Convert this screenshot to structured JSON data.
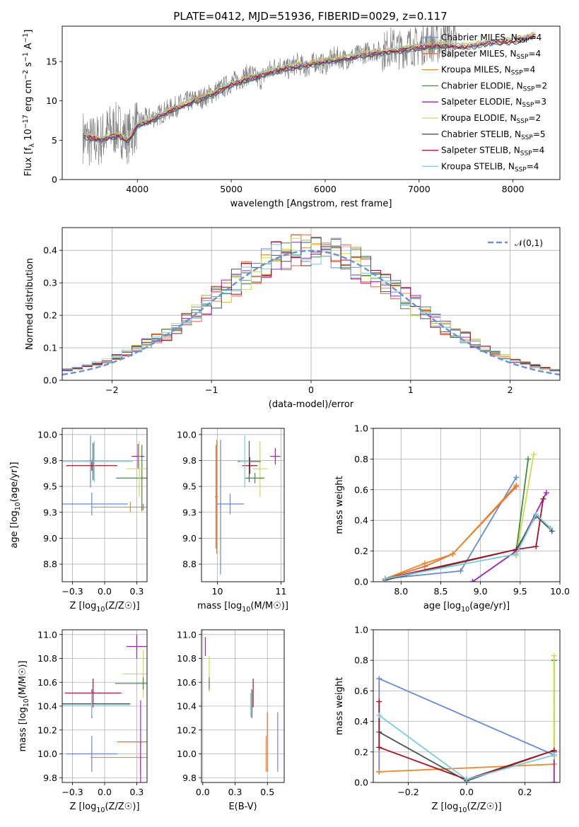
{
  "title": "PLATE=0412, MJD=51936, FIBERID=0029, z=0.117",
  "models": [
    {
      "name": "Chabrier MILES, N$_{SSP}$=4",
      "base": "Chabrier MILES, N",
      "sub": "SSP",
      "tail": "=4",
      "color": "#6688dd"
    },
    {
      "name": "Salpeter MILES, N$_{SSP}$=4",
      "base": "Salpeter MILES, N",
      "sub": "SSP",
      "tail": "=4",
      "color": "#ee6633"
    },
    {
      "name": "Kroupa MILES, N$_{SSP}$=4",
      "base": "Kroupa MILES, N",
      "sub": "SSP",
      "tail": "=4",
      "color": "#ee8822"
    },
    {
      "name": "Chabrier ELODIE, N$_{SSP}$=2",
      "base": "Chabrier ELODIE, N",
      "sub": "SSP",
      "tail": "=2",
      "color": "#448844"
    },
    {
      "name": "Salpeter ELODIE, N$_{SSP}$=3",
      "base": "Salpeter ELODIE, N",
      "sub": "SSP",
      "tail": "=3",
      "color": "#9922bb"
    },
    {
      "name": "Kroupa ELODIE, N$_{SSP}$=2",
      "base": "Kroupa ELODIE, N",
      "sub": "SSP",
      "tail": "=2",
      "color": "#ccdd44"
    },
    {
      "name": "Chabrier STELIB, N$_{SSP}$=5",
      "base": "Chabrier STELIB, N",
      "sub": "SSP",
      "tail": "=5",
      "color": "#445555"
    },
    {
      "name": "Salpeter STELIB, N$_{SSP}$=4",
      "base": "Salpeter STELIB, N",
      "sub": "SSP",
      "tail": "=4",
      "color": "#aa1122"
    },
    {
      "name": "Kroupa STELIB, N$_{SSP}$=4",
      "base": "Kroupa STELIB, N",
      "sub": "SSP",
      "tail": "=4",
      "color": "#77ccdd"
    }
  ],
  "chart_data": [
    {
      "type": "line",
      "id": "spectrum",
      "xlabel": "wavelength [Angstrom, rest frame]",
      "ylabel": "Flux [f_λ 10^-17 erg cm^-2 s^-1 A^-1]",
      "xlim": [
        3200,
        8500
      ],
      "ylim": [
        0,
        19.5
      ],
      "xticks": [
        4000,
        5000,
        6000,
        7000,
        8000
      ],
      "yticks": [
        0,
        5,
        10,
        15
      ],
      "data_color": "#808080",
      "data_x": [
        3420,
        3500,
        3600,
        3700,
        3800,
        3900,
        4000,
        4100,
        4200,
        4300,
        4400,
        4500,
        4600,
        4700,
        4800,
        4900,
        5000,
        5100,
        5200,
        5300,
        5400,
        5500,
        5600,
        5700,
        5800,
        5900,
        6000,
        6100,
        6200,
        6300,
        6400,
        6500,
        6600,
        6700,
        6800,
        6900,
        7000,
        7100,
        7200,
        7300,
        7400
      ],
      "data_y": [
        5.5,
        4.8,
        5.0,
        6.2,
        6.5,
        5.3,
        7.2,
        7.8,
        8.0,
        8.7,
        9.2,
        9.8,
        10.1,
        10.4,
        11.0,
        11.6,
        12.3,
        12.8,
        13.5,
        12.6,
        13.8,
        14.6,
        14.0,
        14.8,
        14.2,
        15.0,
        14.6,
        15.6,
        15.3,
        15.6,
        16.0,
        16.4,
        16.2,
        16.9,
        16.5,
        17.1,
        16.8,
        17.6,
        17.2,
        18.0,
        17.4
      ],
      "model_x": [
        3420,
        3600,
        3800,
        3900,
        4000,
        4200,
        4400,
        4600,
        4800,
        5000,
        5200,
        5400,
        5600,
        5800,
        6000,
        6200,
        6400,
        6600,
        6800,
        7000,
        7200,
        7500,
        7800,
        8000,
        8250
      ],
      "model_y": [
        5.6,
        5.1,
        5.7,
        4.9,
        6.9,
        7.9,
        9.0,
        10.0,
        10.9,
        12.1,
        12.9,
        13.6,
        14.2,
        14.6,
        15.0,
        15.4,
        15.8,
        16.2,
        16.5,
        16.8,
        17.1,
        16.9,
        17.5,
        17.6,
        18.4
      ]
    },
    {
      "type": "histogram",
      "id": "residuals",
      "xlabel": "(data-model)/error",
      "ylabel": "Normed distribution",
      "xlim": [
        -2.5,
        2.5
      ],
      "ylim": [
        0,
        0.47
      ],
      "xticks": [
        -2,
        -1,
        0,
        1,
        2
      ],
      "yticks": [
        0.0,
        0.1,
        0.2,
        0.3,
        0.4
      ],
      "bin_width": 0.1,
      "reference": {
        "label": "𝒩(0,1)",
        "color": "#6a8fd8",
        "mean": 0,
        "sigma": 1
      }
    },
    {
      "type": "errorbar",
      "id": "age-vs-Z",
      "xlabel": "Z [log10(Z/Z☉)]",
      "ylabel": "age [log10(age/yr)]",
      "xlim": [
        -0.33,
        0.33
      ],
      "ylim": [
        8.58,
        10.06
      ],
      "xticks": [
        -0.25,
        0.0,
        0.25
      ],
      "yticks": [
        8.75,
        9.0,
        9.25,
        9.5,
        9.75,
        10.0
      ],
      "points": [
        {
          "model": 0,
          "x": -0.1,
          "xerr": 0.28,
          "y": 9.33,
          "yerr": 0.11
        },
        {
          "model": 0,
          "x": -0.11,
          "xerr": 0.04,
          "y": 9.74,
          "yerr": 0.25
        },
        {
          "model": 1,
          "x": 0.3,
          "xerr": 0.01,
          "y": 9.3,
          "yerr": 0.03
        },
        {
          "model": 2,
          "x": 0.2,
          "xerr": 0.3,
          "y": 9.3,
          "yerr": 0.05
        },
        {
          "model": 3,
          "x": 0.29,
          "xerr": 0.2,
          "y": 9.58,
          "yerr": 0.32
        },
        {
          "model": 4,
          "x": 0.26,
          "xerr": 0.05,
          "y": 9.79,
          "yerr": 0.12
        },
        {
          "model": 5,
          "x": 0.27,
          "xerr": 0.1,
          "y": 9.67,
          "yerr": 0.27
        },
        {
          "model": 6,
          "x": -0.09,
          "xerr": 0.28,
          "y": 9.74,
          "yerr": 0.18
        },
        {
          "model": 7,
          "x": -0.1,
          "xerr": 0.2,
          "y": 9.7,
          "yerr": 0.05
        },
        {
          "model": 8,
          "x": -0.08,
          "xerr": 0.3,
          "y": 9.74,
          "yerr": 0.2
        }
      ]
    },
    {
      "type": "errorbar",
      "id": "age-vs-mass",
      "xlabel": "mass [log10(M/M☉)]",
      "ylabel": "",
      "xlim": [
        9.75,
        11.05
      ],
      "ylim": [
        8.58,
        10.06
      ],
      "xticks": [
        10,
        11
      ],
      "yticks": [
        8.75,
        9.0,
        9.25,
        9.5,
        9.75,
        10.0
      ],
      "points": [
        {
          "model": 0,
          "x": 10.2,
          "xerr": 0.22,
          "y": 9.33,
          "yerr": 0.1
        },
        {
          "model": 1,
          "x": 9.98,
          "xerr": 0.02,
          "y": 9.4,
          "yerr": 0.5
        },
        {
          "model": 2,
          "x": 9.99,
          "xerr": 0.02,
          "y": 9.4,
          "yerr": 0.55
        },
        {
          "model": 4,
          "x": 10.91,
          "xerr": 0.08,
          "y": 9.79,
          "yerr": 0.08
        },
        {
          "model": 5,
          "x": 10.67,
          "xerr": 0.12,
          "y": 9.67,
          "yerr": 0.27
        },
        {
          "model": 6,
          "x": 10.5,
          "xerr": 0.18,
          "y": 9.74,
          "yerr": 0.2
        },
        {
          "model": 7,
          "x": 10.51,
          "xerr": 0.12,
          "y": 9.7,
          "yerr": 0.08
        },
        {
          "model": 8,
          "x": 10.43,
          "xerr": 0.08,
          "y": 9.74,
          "yerr": 0.25
        },
        {
          "model": 3,
          "x": 10.59,
          "xerr": 0.15,
          "y": 9.58,
          "yerr": 0.05
        },
        {
          "model": 0,
          "x": 10.05,
          "xerr": 0.01,
          "y": 9.3,
          "yerr": 0.65
        }
      ]
    },
    {
      "type": "line",
      "id": "weight-vs-age",
      "xlabel": "age [log10(age/yr)]",
      "ylabel": "mass weight",
      "xlim": [
        7.65,
        10.0
      ],
      "ylim": [
        0,
        1.0
      ],
      "xticks": [
        8.0,
        8.5,
        9.0,
        9.5,
        10.0
      ],
      "yticks": [
        0.0,
        0.2,
        0.4,
        0.6,
        0.8,
        1.0
      ],
      "series": [
        {
          "model": 0,
          "x": [
            7.8,
            8.75,
            9.45
          ],
          "y": [
            0.02,
            0.07,
            0.68
          ]
        },
        {
          "model": 1,
          "x": [
            7.8,
            8.3,
            8.65,
            9.45
          ],
          "y": [
            0.02,
            0.1,
            0.18,
            0.62
          ]
        },
        {
          "model": 2,
          "x": [
            7.8,
            8.3,
            8.65,
            9.45
          ],
          "y": [
            0.02,
            0.12,
            0.18,
            0.63
          ]
        },
        {
          "model": 3,
          "x": [
            9.45,
            9.6
          ],
          "y": [
            0.2,
            0.8
          ]
        },
        {
          "model": 4,
          "x": [
            8.9,
            9.45,
            9.83
          ],
          "y": [
            0.0,
            0.2,
            0.58
          ]
        },
        {
          "model": 5,
          "x": [
            9.45,
            9.67
          ],
          "y": [
            0.17,
            0.83
          ]
        },
        {
          "model": 6,
          "x": [
            7.8,
            9.45,
            9.7,
            9.9
          ],
          "y": [
            0.01,
            0.21,
            0.43,
            0.33
          ]
        },
        {
          "model": 7,
          "x": [
            7.8,
            9.45,
            9.7,
            9.79
          ],
          "y": [
            0.02,
            0.21,
            0.23,
            0.54
          ]
        },
        {
          "model": 8,
          "x": [
            7.8,
            9.45,
            9.7,
            9.88
          ],
          "y": [
            0.02,
            0.18,
            0.44,
            0.35
          ]
        }
      ]
    },
    {
      "type": "errorbar",
      "id": "mass-vs-Z",
      "xlabel": "Z [log10(Z/Z☉)]",
      "ylabel": "mass [log10(M/M☉)]",
      "xlim": [
        -0.33,
        0.33
      ],
      "ylim": [
        9.76,
        11.04
      ],
      "xticks": [
        -0.25,
        0.0,
        0.25
      ],
      "yticks": [
        9.8,
        10.0,
        10.2,
        10.4,
        10.6,
        10.8,
        11.0
      ],
      "points": [
        {
          "model": 0,
          "x": -0.1,
          "xerr": 0.2,
          "y": 10.0,
          "yerr": 0.0
        },
        {
          "model": 0,
          "x": -0.1,
          "xerr": 0.0,
          "y": 10.0,
          "yerr": 0.15
        },
        {
          "model": 1,
          "x": 0.28,
          "xerr": 0.02,
          "y": 9.97,
          "yerr": 0.15
        },
        {
          "model": 2,
          "x": 0.17,
          "xerr": 0.28,
          "y": 9.97,
          "yerr": 0.0
        },
        {
          "model": 4,
          "x": 0.25,
          "xerr": 0.08,
          "y": 10.9,
          "yerr": 0.1
        },
        {
          "model": 5,
          "x": 0.3,
          "xerr": 0.16,
          "y": 10.67,
          "yerr": 0.2
        },
        {
          "model": 3,
          "x": 0.3,
          "xerr": 0.22,
          "y": 10.59,
          "yerr": 0.05
        },
        {
          "model": 6,
          "x": -0.1,
          "xerr": 0.3,
          "y": 10.42,
          "yerr": 0.12
        },
        {
          "model": 7,
          "x": -0.09,
          "xerr": 0.22,
          "y": 10.51,
          "yerr": 0.12
        },
        {
          "model": 8,
          "x": -0.1,
          "xerr": 0.3,
          "y": 10.41,
          "yerr": 0.1
        },
        {
          "model": 1,
          "x": 0.22,
          "xerr": 0.12,
          "y": 10.1,
          "yerr": 0.0
        },
        {
          "model": 4,
          "x": 0.28,
          "xerr": 0.0,
          "y": 10.1,
          "yerr": 0.35
        }
      ]
    },
    {
      "type": "errorbar",
      "id": "mass-vs-ebv",
      "xlabel": "E(B-V)",
      "ylabel": "",
      "xlim": [
        -0.01,
        0.63
      ],
      "ylim": [
        9.76,
        11.04
      ],
      "xticks": [
        0.0,
        0.25,
        0.5
      ],
      "yticks": [
        9.8,
        10.0,
        10.2,
        10.4,
        10.6,
        10.8,
        11.0
      ],
      "points": [
        {
          "model": 4,
          "x": 0.02,
          "xerr": 0.0,
          "y": 10.9,
          "yerr": 0.08
        },
        {
          "model": 5,
          "x": 0.05,
          "xerr": 0.0,
          "y": 10.67,
          "yerr": 0.15
        },
        {
          "model": 3,
          "x": 0.05,
          "xerr": 0.0,
          "y": 10.59,
          "yerr": 0.05
        },
        {
          "model": 7,
          "x": 0.39,
          "xerr": 0.0,
          "y": 10.51,
          "yerr": 0.12
        },
        {
          "model": 6,
          "x": 0.38,
          "xerr": 0.0,
          "y": 10.42,
          "yerr": 0.12
        },
        {
          "model": 8,
          "x": 0.37,
          "xerr": 0.0,
          "y": 10.41,
          "yerr": 0.1
        },
        {
          "model": 1,
          "x": 0.5,
          "xerr": 0.0,
          "y": 10.1,
          "yerr": 0.25
        },
        {
          "model": 2,
          "x": 0.49,
          "xerr": 0.0,
          "y": 10.0,
          "yerr": 0.15
        },
        {
          "model": 0,
          "x": 0.58,
          "xerr": 0.0,
          "y": 10.1,
          "yerr": 0.25
        }
      ]
    },
    {
      "type": "line",
      "id": "weight-vs-Z",
      "xlabel": "Z [log10(Z/Z☉)]",
      "ylabel": "mass weight",
      "xlim": [
        -0.32,
        0.32
      ],
      "ylim": [
        0,
        1.0
      ],
      "xticks": [
        -0.2,
        0.0,
        0.2
      ],
      "yticks": [
        0.0,
        0.2,
        0.4,
        0.6,
        0.8,
        1.0
      ],
      "series": [
        {
          "model": 0,
          "x": [
            -0.3,
            -0.3,
            0.3
          ],
          "y": [
            0.07,
            0.68,
            0.18
          ]
        },
        {
          "model": 2,
          "x": [
            -0.3,
            0.3
          ],
          "y": [
            0.07,
            0.12
          ]
        },
        {
          "model": 3,
          "x": [
            0.3,
            0.3
          ],
          "y": [
            0.2,
            0.8
          ]
        },
        {
          "model": 4,
          "x": [
            0.3,
            0.3
          ],
          "y": [
            0.0,
            0.2
          ]
        },
        {
          "model": 5,
          "x": [
            0.3,
            0.3
          ],
          "y": [
            0.17,
            0.83
          ]
        },
        {
          "model": 6,
          "x": [
            -0.3,
            0.0,
            0.3
          ],
          "y": [
            0.33,
            0.01,
            0.21
          ]
        },
        {
          "model": 7,
          "x": [
            -0.3,
            -0.3,
            0.0,
            0.3
          ],
          "y": [
            0.53,
            0.23,
            0.02,
            0.21
          ]
        },
        {
          "model": 8,
          "x": [
            -0.3,
            0.0,
            0.3
          ],
          "y": [
            0.44,
            0.02,
            0.18
          ]
        }
      ]
    }
  ]
}
